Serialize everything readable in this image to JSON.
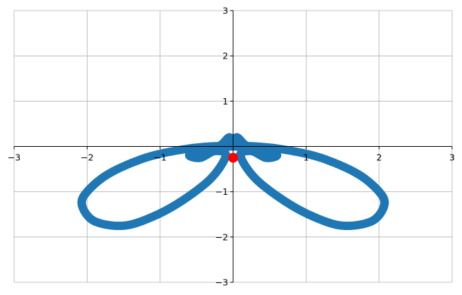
{
  "chart_data": {
    "type": "scatter",
    "title": "",
    "xlabel": "",
    "ylabel": "",
    "xlim": [
      -3,
      3
    ],
    "ylim": [
      -3,
      3
    ],
    "grid": true,
    "spines": "centered-at-origin",
    "x_ticks": [
      -3,
      -2,
      -1,
      0,
      1,
      2,
      3
    ],
    "y_ticks": [
      -3,
      -2,
      -1,
      1,
      2,
      3
    ],
    "x_tick_labels": [
      "−3",
      "−2",
      "−1",
      "",
      "1",
      "2",
      "3"
    ],
    "y_tick_labels": [
      "−3",
      "−2",
      "−1",
      "1",
      "2",
      "3"
    ],
    "series": [
      {
        "color": "#1f77b4",
        "marker": "circle",
        "points": [
          [
            0.0,
            0.0
          ],
          [
            -0.05,
            0.2
          ],
          [
            -0.2,
            0.0
          ],
          [
            -0.5,
            -0.1
          ],
          [
            -0.6,
            -0.2
          ],
          [
            -0.45,
            -0.25
          ],
          [
            -0.25,
            -0.1
          ],
          [
            -0.1,
            -0.2
          ],
          [
            -0.3,
            -0.7
          ],
          [
            -0.7,
            -1.2
          ],
          [
            -1.1,
            -1.55
          ],
          [
            -1.5,
            -1.75
          ],
          [
            -1.9,
            -1.65
          ],
          [
            -2.07,
            -1.3
          ],
          [
            -2.0,
            -1.0
          ],
          [
            -1.7,
            -0.6
          ],
          [
            -1.2,
            -0.25
          ],
          [
            -0.7,
            -0.07
          ],
          [
            -0.3,
            0.0
          ],
          [
            0.0,
            0.0
          ],
          [
            0.3,
            0.0
          ],
          [
            0.7,
            -0.07
          ],
          [
            1.2,
            -0.25
          ],
          [
            1.7,
            -0.6
          ],
          [
            2.0,
            -1.0
          ],
          [
            2.07,
            -1.3
          ],
          [
            1.9,
            -1.65
          ],
          [
            1.5,
            -1.75
          ],
          [
            1.1,
            -1.55
          ],
          [
            0.7,
            -1.2
          ],
          [
            0.3,
            -0.7
          ],
          [
            0.1,
            -0.2
          ],
          [
            0.25,
            -0.1
          ],
          [
            0.45,
            -0.25
          ],
          [
            0.6,
            -0.2
          ],
          [
            0.5,
            -0.1
          ],
          [
            0.2,
            0.0
          ],
          [
            0.05,
            0.2
          ],
          [
            0.0,
            0.0
          ]
        ]
      },
      {
        "color": "#ff0000",
        "marker": "circle",
        "points": [
          [
            0.0,
            -0.25
          ]
        ]
      }
    ]
  }
}
